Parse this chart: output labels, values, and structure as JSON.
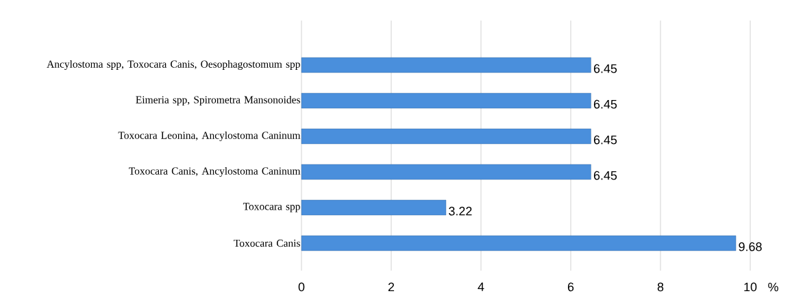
{
  "chart_data": {
    "type": "bar",
    "orientation": "horizontal",
    "xlabel": "%",
    "categories": [
      "Ancylostoma spp, Toxocara Canis, Oesophagostomum spp",
      "Eimeria spp, Spirometra Mansonoides",
      "Toxocara Leonina, Ancylostoma Caninum",
      "Toxocara Canis, Ancylostoma Caninum",
      "Toxocara spp",
      "Toxocara Canis"
    ],
    "values": [
      6.45,
      6.45,
      6.45,
      6.45,
      3.22,
      9.68
    ],
    "color": "#4a8fdc",
    "xlim": [
      0,
      10
    ],
    "xticks": [
      0,
      2,
      4,
      6,
      8,
      10
    ],
    "grid": "x",
    "data_labels": true
  }
}
